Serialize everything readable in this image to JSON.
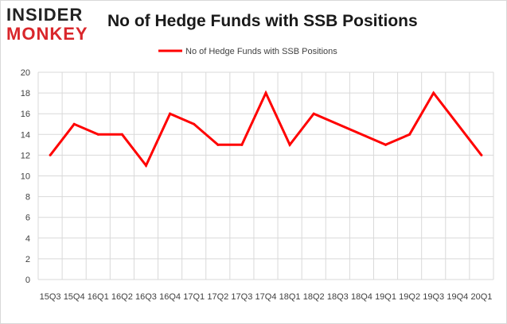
{
  "logo": {
    "line1": "INSIDER",
    "line2": "MONKEY"
  },
  "chart_data": {
    "type": "line",
    "title": "No of Hedge Funds with SSB Positions",
    "xlabel": "",
    "ylabel": "",
    "categories": [
      "15Q3",
      "15Q4",
      "16Q1",
      "16Q2",
      "16Q3",
      "16Q4",
      "17Q1",
      "17Q2",
      "17Q3",
      "17Q4",
      "18Q1",
      "18Q2",
      "18Q3",
      "18Q4",
      "19Q1",
      "19Q2",
      "19Q3",
      "19Q4",
      "20Q1"
    ],
    "series": [
      {
        "name": "No of Hedge Funds with SSB Positions",
        "values": [
          12,
          15,
          14,
          14,
          11,
          16,
          15,
          13,
          13,
          18,
          13,
          16,
          null,
          null,
          13,
          14,
          18,
          null,
          12
        ]
      }
    ],
    "ylim": [
      0,
      20
    ],
    "yticks": [
      0,
      2,
      4,
      6,
      8,
      10,
      12,
      14,
      16,
      18,
      20
    ],
    "grid": true,
    "legend": "top-center",
    "colors": {
      "series": "#ff0000",
      "grid": "#d9d9d9",
      "axis": "#bfbfbf"
    }
  }
}
